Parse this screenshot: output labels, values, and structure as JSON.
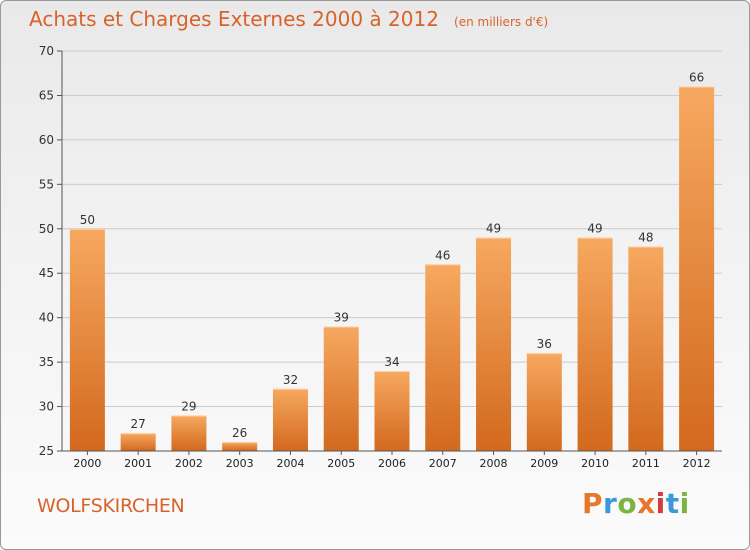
{
  "title": "Achats et Charges Externes 2000 à 2012",
  "subtitle": "(en milliers d'€)",
  "commune": "WOLFSKIRCHEN",
  "logo": {
    "text": "Proxiti",
    "colors": [
      "#e8772e",
      "#3a9ad9",
      "#7cb342",
      "#e8772e",
      "#d63a3a",
      "#3a9ad9",
      "#7cb342"
    ]
  },
  "colors": {
    "bar_top": "#f7a860",
    "bar_bottom": "#d2691e",
    "title": "#d9622b",
    "grid": "#cccccc"
  },
  "chart_data": {
    "type": "bar",
    "title": "Achats et Charges Externes 2000 à 2012",
    "subtitle": "(en milliers d'€)",
    "categories": [
      "2000",
      "2001",
      "2002",
      "2003",
      "2004",
      "2005",
      "2006",
      "2007",
      "2008",
      "2009",
      "2010",
      "2011",
      "2012"
    ],
    "values": [
      50,
      27,
      29,
      26,
      32,
      39,
      34,
      46,
      49,
      36,
      49,
      48,
      66
    ],
    "ylim": [
      25,
      70
    ],
    "yticks": [
      25,
      30,
      35,
      40,
      45,
      50,
      55,
      60,
      65,
      70
    ],
    "grid": true
  }
}
